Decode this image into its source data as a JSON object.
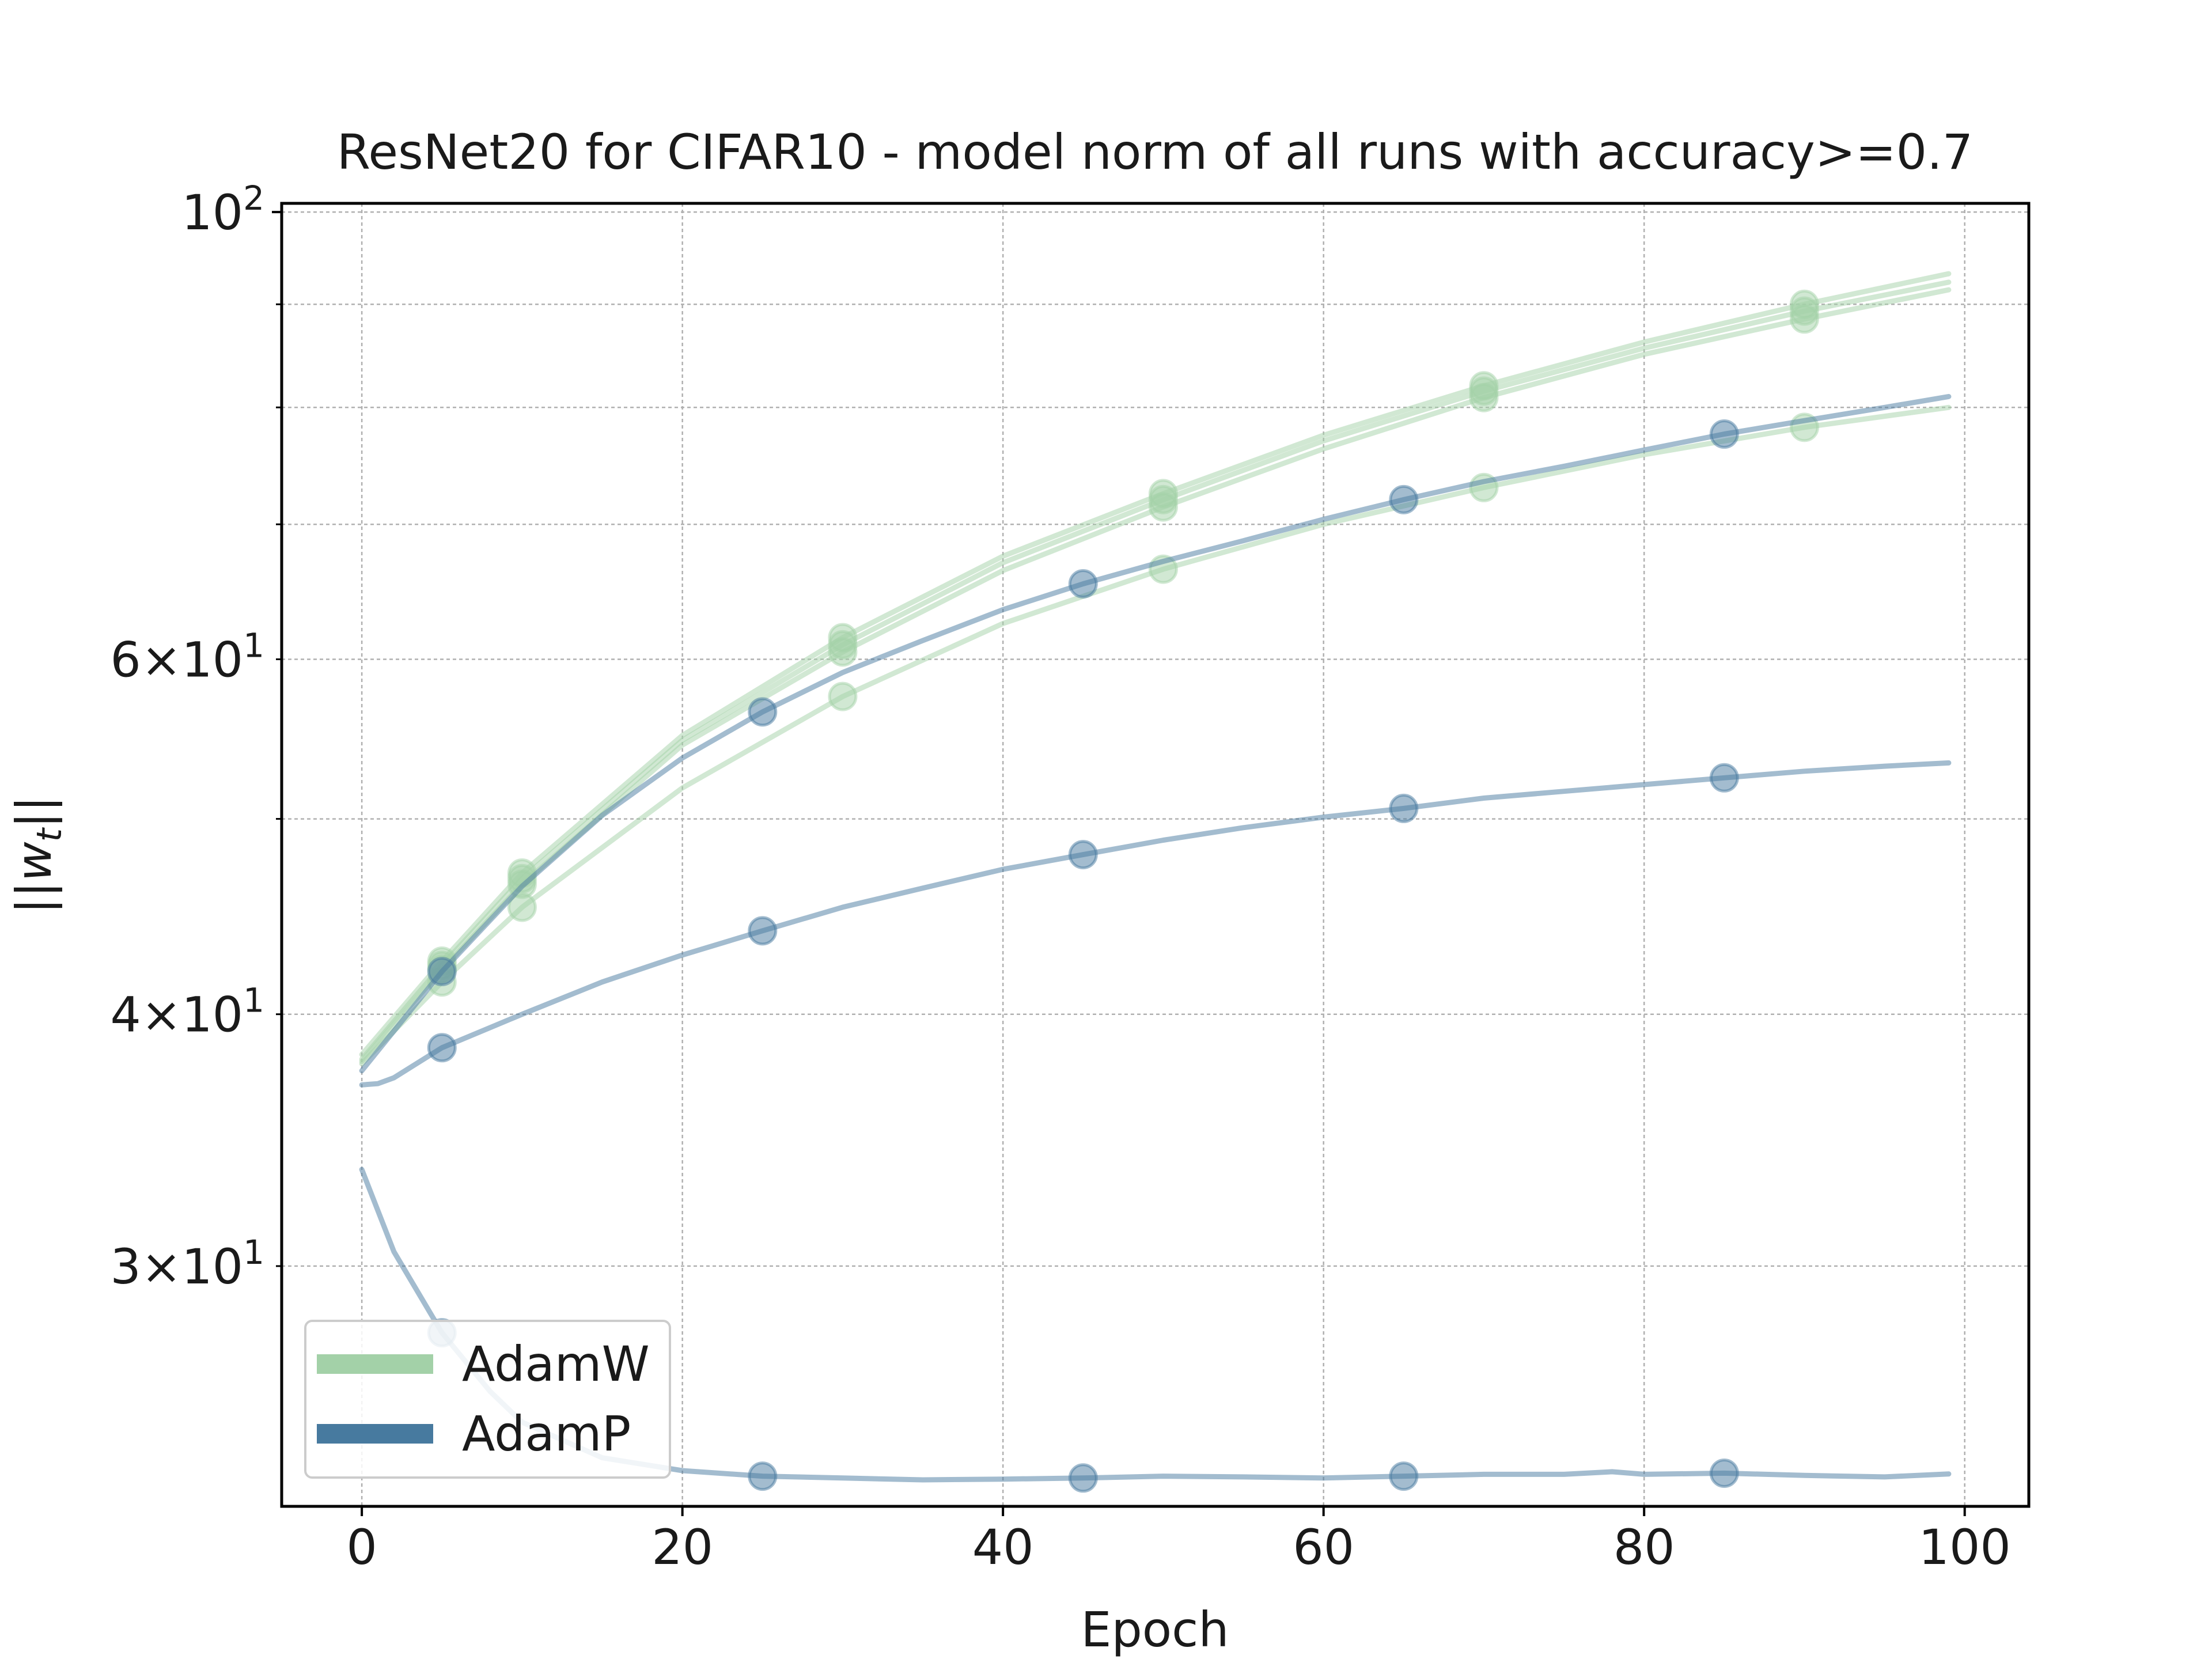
{
  "chart_data": {
    "type": "line",
    "title": "ResNet20 for CIFAR10 - model norm of all runs with accuracy>=0.7",
    "xlabel": "Epoch",
    "ylabel": "||w_t||",
    "xlim": [
      -5,
      104
    ],
    "ylim": [
      22.8,
      101
    ],
    "yscale": "log",
    "grid": true,
    "legend_position": "lower-left",
    "x_ticks": [
      0,
      20,
      40,
      60,
      80,
      100
    ],
    "y_ticks_major": [
      {
        "value": 100,
        "base": "10",
        "exp": "2"
      }
    ],
    "y_ticks_minor": [
      {
        "value": 30,
        "mant": "3",
        "base": "10",
        "exp": "1"
      },
      {
        "value": 40,
        "mant": "4",
        "base": "10",
        "exp": "1"
      },
      {
        "value": 60,
        "mant": "6",
        "base": "10",
        "exp": "1"
      }
    ],
    "y_minor_grid": [
      30,
      40,
      50,
      60,
      70,
      80,
      90
    ],
    "legend": [
      {
        "name": "AdamW",
        "color": "#a3d1a8"
      },
      {
        "name": "AdamP",
        "color": "#477a9f"
      }
    ],
    "series": [
      {
        "name": "AdamW",
        "color": "#a3d1a8",
        "markers": [
          5,
          10,
          30,
          50,
          70,
          90
        ],
        "x": [
          0,
          5,
          10,
          20,
          30,
          40,
          50,
          60,
          70,
          80,
          90,
          99
        ],
        "y": [
          38.2,
          42.5,
          47.0,
          55.0,
          61.5,
          67.5,
          72.5,
          77.5,
          82.0,
          86.2,
          90.0,
          93.2
        ]
      },
      {
        "name": "AdamW",
        "color": "#a3d1a8",
        "markers": [
          5,
          10,
          30,
          50,
          70,
          90
        ],
        "x": [
          0,
          5,
          10,
          20,
          30,
          40,
          50,
          60,
          70,
          80,
          90,
          99
        ],
        "y": [
          38.0,
          42.3,
          46.7,
          54.7,
          61.0,
          67.0,
          72.0,
          77.0,
          81.5,
          85.6,
          89.3,
          92.3
        ]
      },
      {
        "name": "AdamW",
        "color": "#a3d1a8",
        "markers": [
          5,
          10,
          30,
          50,
          70,
          90
        ],
        "x": [
          0,
          5,
          10,
          20,
          30,
          40,
          50,
          60,
          70,
          80,
          90,
          99
        ],
        "y": [
          37.9,
          42.1,
          46.4,
          54.4,
          60.5,
          66.4,
          71.4,
          76.3,
          80.9,
          85.0,
          88.5,
          91.5
        ]
      },
      {
        "name": "AdamW",
        "color": "#a3d1a8",
        "markers": [
          5,
          10,
          30,
          50,
          70,
          90
        ],
        "x": [
          0,
          5,
          10,
          20,
          30,
          40,
          50,
          60,
          70,
          80,
          90,
          99
        ],
        "y": [
          37.8,
          41.5,
          45.2,
          51.8,
          57.5,
          62.5,
          66.5,
          70.0,
          73.0,
          75.8,
          78.2,
          80.0
        ]
      },
      {
        "name": "AdamP",
        "color": "#477a9f",
        "markers": [
          5,
          25,
          45,
          65,
          85
        ],
        "x": [
          0,
          5,
          10,
          15,
          20,
          25,
          30,
          35,
          40,
          45,
          50,
          55,
          60,
          65,
          70,
          75,
          80,
          85,
          90,
          95,
          99
        ],
        "y": [
          37.5,
          42.0,
          46.3,
          50.2,
          53.6,
          56.5,
          59.1,
          61.3,
          63.5,
          65.4,
          67.1,
          68.7,
          70.4,
          72.0,
          73.5,
          74.8,
          76.2,
          77.6,
          78.8,
          80.0,
          81.0
        ]
      },
      {
        "name": "AdamP",
        "color": "#477a9f",
        "markers": [
          5,
          25,
          45,
          65,
          85
        ],
        "x": [
          0,
          1,
          2,
          5,
          10,
          15,
          20,
          25,
          30,
          35,
          40,
          45,
          50,
          55,
          60,
          65,
          70,
          75,
          80,
          85,
          90,
          95,
          99
        ],
        "y": [
          36.9,
          36.95,
          37.2,
          38.5,
          40.0,
          41.5,
          42.8,
          44.0,
          45.2,
          46.2,
          47.2,
          48.0,
          48.8,
          49.5,
          50.1,
          50.6,
          51.2,
          51.6,
          52.0,
          52.4,
          52.8,
          53.1,
          53.3
        ]
      },
      {
        "name": "AdamP",
        "color": "#477a9f",
        "markers": [
          5,
          25,
          45,
          65,
          85
        ],
        "x": [
          0,
          2,
          5,
          8,
          10,
          15,
          20,
          25,
          30,
          35,
          40,
          45,
          50,
          55,
          60,
          65,
          70,
          75,
          78,
          80,
          85,
          90,
          95,
          99
        ],
        "y": [
          33.5,
          30.5,
          27.8,
          26.0,
          25.1,
          24.1,
          23.75,
          23.6,
          23.55,
          23.5,
          23.52,
          23.55,
          23.6,
          23.58,
          23.55,
          23.6,
          23.65,
          23.65,
          23.72,
          23.65,
          23.68,
          23.62,
          23.58,
          23.66
        ]
      }
    ]
  }
}
